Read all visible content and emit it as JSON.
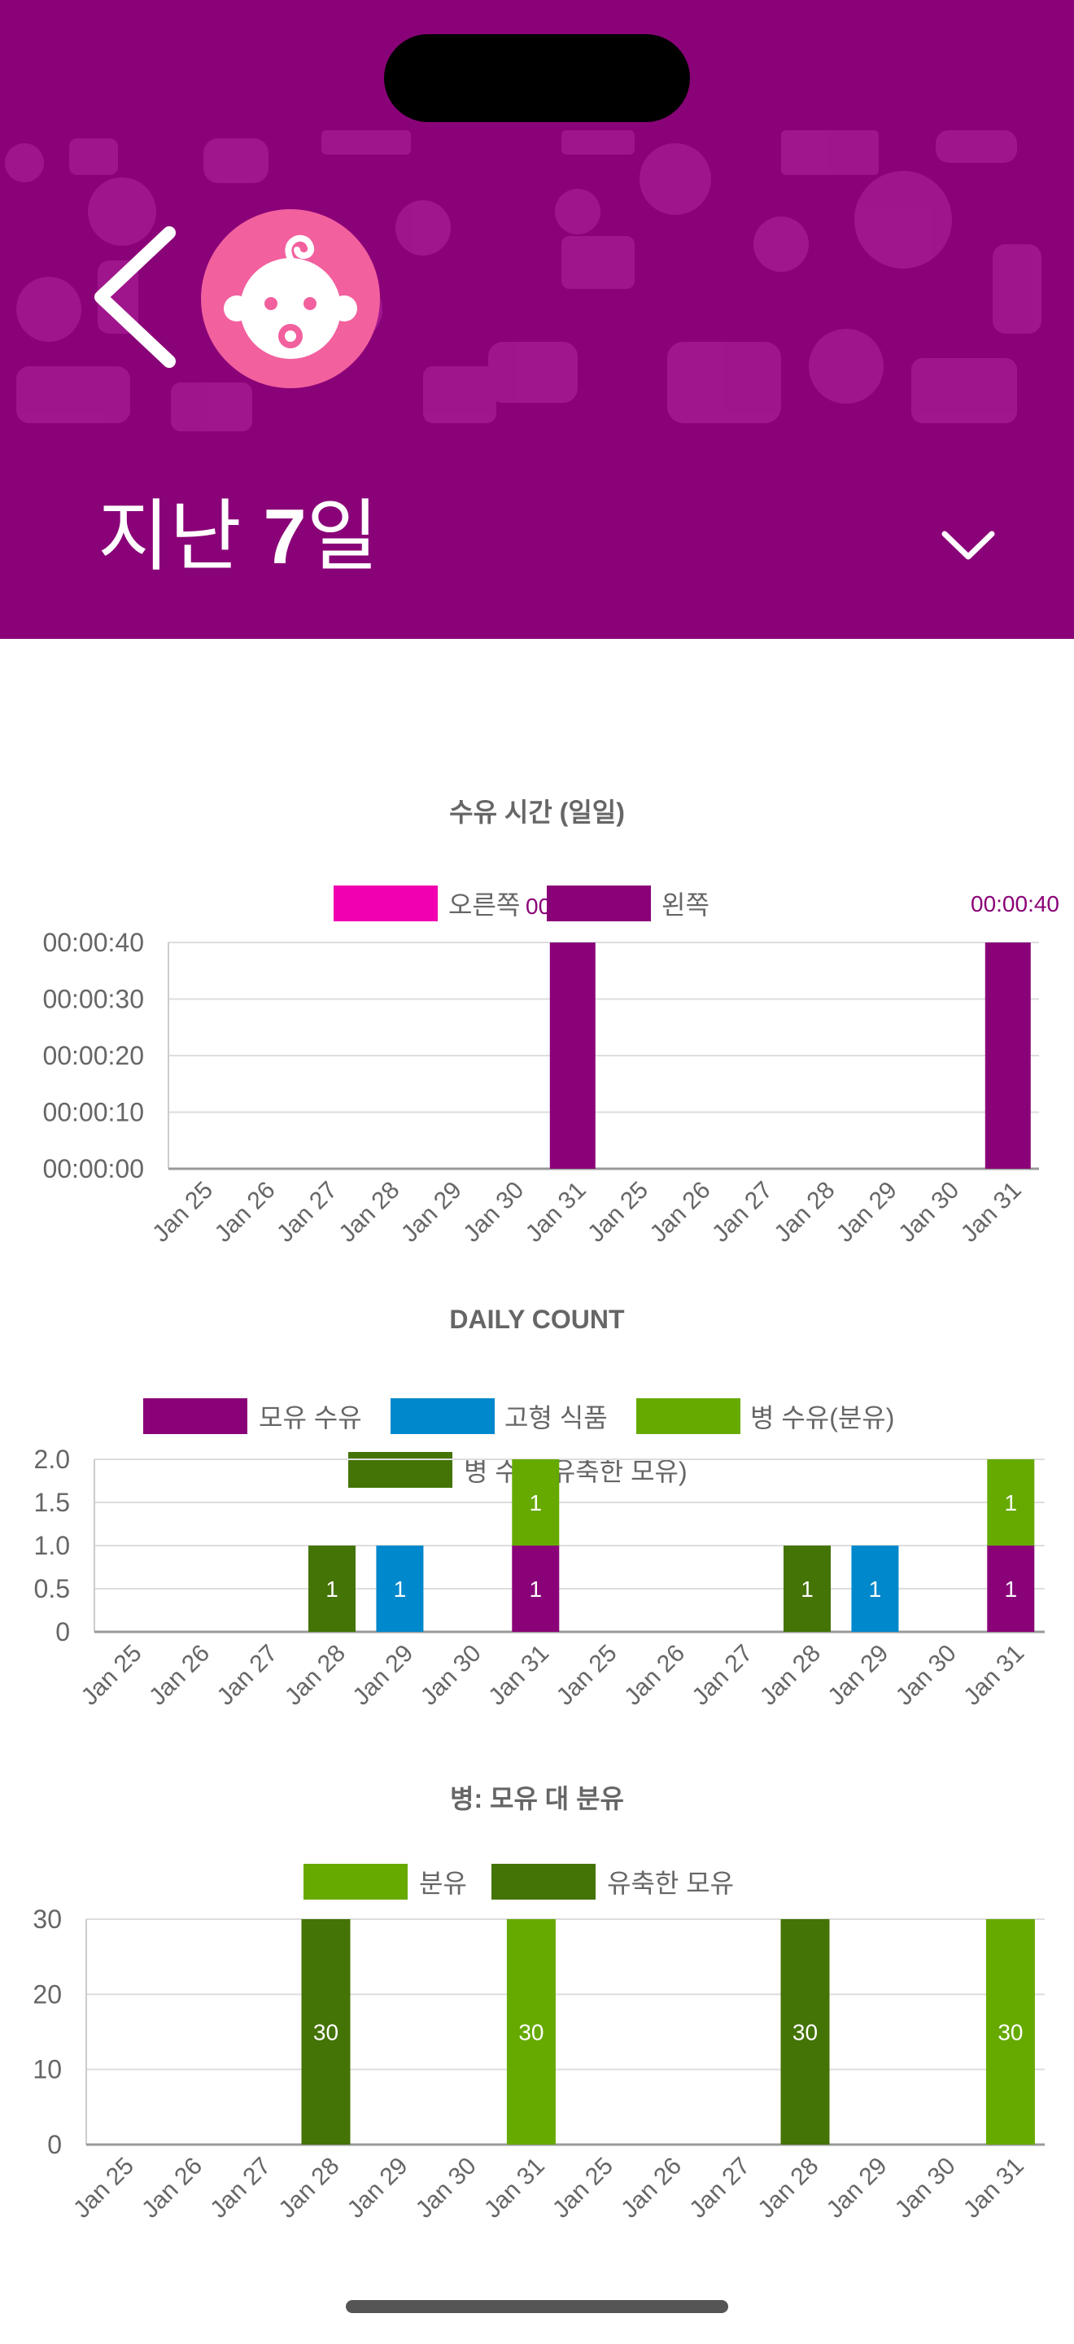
{
  "header": {
    "period_prefix": "지난 ",
    "period_number": "7",
    "period_suffix": "일",
    "back_icon": "chevron-left-icon",
    "avatar_icon": "baby-face-icon",
    "dropdown_icon": "chevron-down-icon",
    "background_color": "#8a0278",
    "avatar_color": "#f2609e"
  },
  "chart_data": [
    {
      "type": "bar",
      "title": "수유 시간 (일일)",
      "categories": [
        "Jan 25",
        "Jan 26",
        "Jan 27",
        "Jan 28",
        "Jan 29",
        "Jan 30",
        "Jan 31",
        "Jan 25",
        "Jan 26",
        "Jan 27",
        "Jan 28",
        "Jan 29",
        "Jan 30",
        "Jan 31"
      ],
      "series": [
        {
          "name": "오른쪽",
          "color": "#f000b0",
          "values": [
            0,
            0,
            0,
            0,
            0,
            0,
            0,
            0,
            0,
            0,
            0,
            0,
            0,
            0
          ]
        },
        {
          "name": "왼쪽",
          "color": "#8a0278",
          "values": [
            0,
            0,
            0,
            0,
            0,
            0,
            40,
            0,
            0,
            0,
            0,
            0,
            0,
            40
          ]
        }
      ],
      "ylim": [
        0,
        40
      ],
      "yticks": [
        "00:00:00",
        "00:00:10",
        "00:00:20",
        "00:00:30",
        "00:00:40"
      ],
      "annotations": [
        "00:00:40",
        "00"
      ],
      "legend": "top-center"
    },
    {
      "type": "bar",
      "stacked": true,
      "title": "DAILY COUNT",
      "categories": [
        "Jan 25",
        "Jan 26",
        "Jan 27",
        "Jan 28",
        "Jan 29",
        "Jan 30",
        "Jan 31",
        "Jan 25",
        "Jan 26",
        "Jan 27",
        "Jan 28",
        "Jan 29",
        "Jan 30",
        "Jan 31"
      ],
      "series": [
        {
          "name": "모유 수유",
          "color": "#8a0278",
          "values": [
            0,
            0,
            0,
            0,
            0,
            0,
            1,
            0,
            0,
            0,
            0,
            0,
            0,
            1
          ]
        },
        {
          "name": "고형 식품",
          "color": "#0088cc",
          "values": [
            0,
            0,
            0,
            0,
            1,
            0,
            0,
            0,
            0,
            0,
            0,
            1,
            0,
            0
          ]
        },
        {
          "name": "병 수유(분유)",
          "color": "#66aa00",
          "values": [
            0,
            0,
            0,
            0,
            0,
            0,
            1,
            0,
            0,
            0,
            0,
            0,
            0,
            1
          ]
        },
        {
          "name": "병 수유(유축한 모유)",
          "color": "#447306",
          "values": [
            0,
            0,
            0,
            1,
            0,
            0,
            0,
            0,
            0,
            0,
            1,
            0,
            0,
            0
          ]
        }
      ],
      "ylim": [
        0,
        2
      ],
      "yticks": [
        "0",
        "0.5",
        "1.0",
        "1.5",
        "2.0"
      ],
      "legend": "top-center"
    },
    {
      "type": "bar",
      "title": "병: 모유 대 분유",
      "categories": [
        "Jan 25",
        "Jan 26",
        "Jan 27",
        "Jan 28",
        "Jan 29",
        "Jan 30",
        "Jan 31",
        "Jan 25",
        "Jan 26",
        "Jan 27",
        "Jan 28",
        "Jan 29",
        "Jan 30",
        "Jan 31"
      ],
      "series": [
        {
          "name": "분유",
          "color": "#66aa00",
          "values": [
            0,
            0,
            0,
            0,
            0,
            0,
            30,
            0,
            0,
            0,
            0,
            0,
            0,
            30
          ]
        },
        {
          "name": "유축한 모유",
          "color": "#447306",
          "values": [
            0,
            0,
            0,
            30,
            0,
            0,
            0,
            0,
            0,
            0,
            30,
            0,
            0,
            0
          ]
        }
      ],
      "ylim": [
        0,
        30
      ],
      "yticks": [
        "0",
        "10",
        "20",
        "30"
      ],
      "legend": "top-center"
    }
  ]
}
